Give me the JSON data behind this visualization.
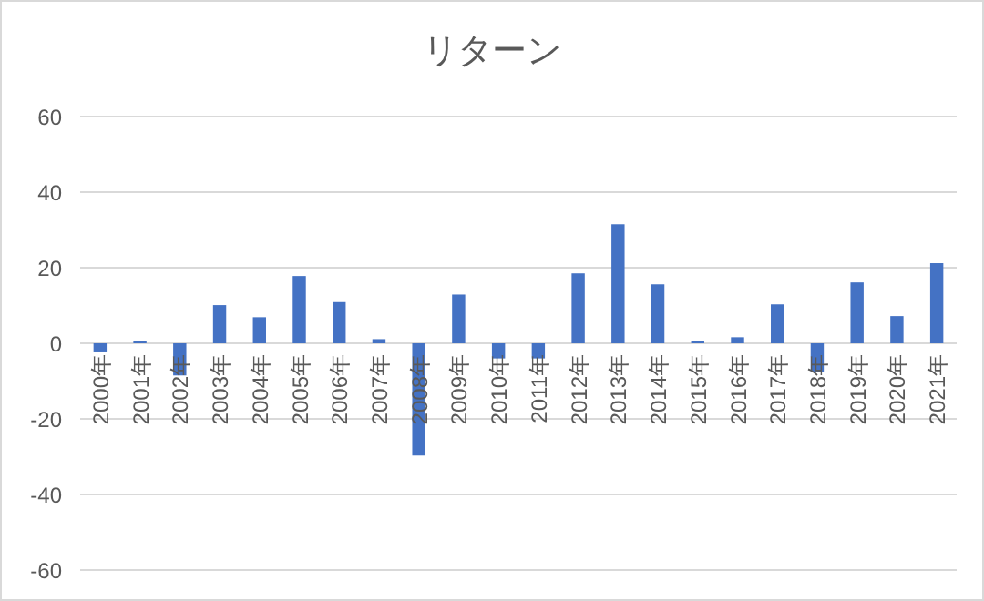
{
  "chart_data": {
    "type": "bar",
    "title": "リターン",
    "categories": [
      "2000年",
      "2001年",
      "2002年",
      "2003年",
      "2004年",
      "2005年",
      "2006年",
      "2007年",
      "2008年",
      "2009年",
      "2010年",
      "2011年",
      "2012年",
      "2013年",
      "2014年",
      "2015年",
      "2016年",
      "2017年",
      "2018年",
      "2019年",
      "2020年",
      "2021年"
    ],
    "values": [
      -2.4,
      0.6,
      -8.5,
      10.1,
      6.9,
      17.8,
      10.9,
      1.1,
      -29.7,
      12.9,
      -4.0,
      -4.0,
      18.5,
      31.5,
      15.6,
      0.5,
      1.6,
      10.3,
      -7.6,
      16.1,
      7.2,
      21.2
    ],
    "color": "#4472c4",
    "ylim": [
      -60,
      60
    ],
    "yticks": [
      -60,
      -40,
      -20,
      0,
      20,
      40,
      60
    ],
    "grid": "y"
  }
}
